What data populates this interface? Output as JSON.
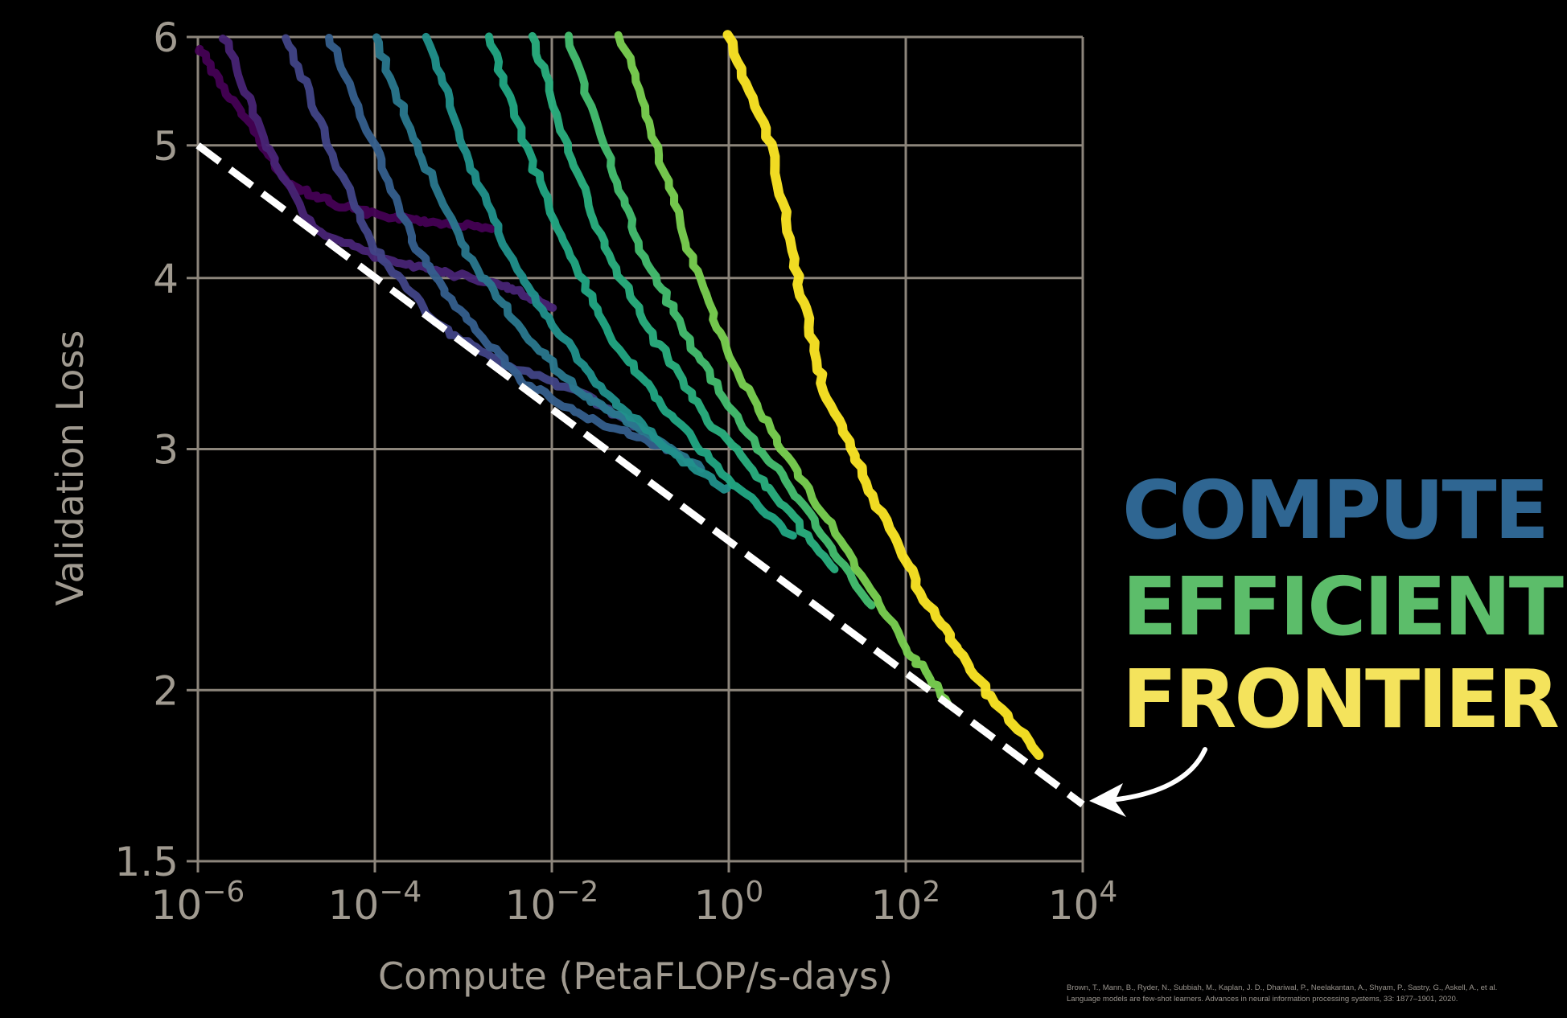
{
  "chart_data": {
    "type": "line",
    "title": "",
    "xlabel": "Compute (PetaFLOP/s-days)",
    "ylabel": "Validation Loss",
    "xscale": "log",
    "yscale": "log",
    "xlim": [
      1e-06,
      10000
    ],
    "ylim": [
      1.5,
      6
    ],
    "grid": true,
    "x_ticks": [
      {
        "value": 1e-06,
        "base": "10",
        "exp": "−6"
      },
      {
        "value": 0.0001,
        "base": "10",
        "exp": "−4"
      },
      {
        "value": 0.01,
        "base": "10",
        "exp": "−2"
      },
      {
        "value": 1,
        "base": "10",
        "exp": "0"
      },
      {
        "value": 100,
        "base": "10",
        "exp": "2"
      },
      {
        "value": 10000,
        "base": "10",
        "exp": "4"
      }
    ],
    "y_ticks": [
      {
        "value": 1.5,
        "label": "1.5"
      },
      {
        "value": 2,
        "label": "2"
      },
      {
        "value": 3,
        "label": "3"
      },
      {
        "value": 4,
        "label": "4"
      },
      {
        "value": 5,
        "label": "5"
      },
      {
        "value": 6,
        "label": "6"
      }
    ],
    "frontier": {
      "style": "dashed",
      "color": "#ffffff",
      "points": [
        [
          1e-06,
          5.0
        ],
        [
          10000,
          1.65
        ]
      ]
    },
    "series": [
      {
        "color": "#440154",
        "points": [
          [
            1e-06,
            5.9
          ],
          [
            3e-06,
            5.3
          ],
          [
            1e-05,
            4.7
          ],
          [
            3e-05,
            4.55
          ],
          [
            0.0001,
            4.45
          ],
          [
            0.0004,
            4.4
          ],
          [
            0.002,
            4.35
          ]
        ]
      },
      {
        "color": "#482475",
        "points": [
          [
            2e-06,
            6.0
          ],
          [
            6e-06,
            5.0
          ],
          [
            2e-05,
            4.35
          ],
          [
            0.0001,
            4.15
          ],
          [
            0.0005,
            4.05
          ],
          [
            0.003,
            3.95
          ],
          [
            0.01,
            3.8
          ]
        ]
      },
      {
        "color": "#414487",
        "points": [
          [
            1e-05,
            6.0
          ],
          [
            3e-05,
            5.0
          ],
          [
            0.0001,
            4.2
          ],
          [
            0.0005,
            3.7
          ],
          [
            0.003,
            3.45
          ],
          [
            0.02,
            3.3
          ],
          [
            0.1,
            3.1
          ]
        ]
      },
      {
        "color": "#355f8d",
        "points": [
          [
            3e-05,
            6.0
          ],
          [
            0.0001,
            5.0
          ],
          [
            0.0003,
            4.2
          ],
          [
            0.001,
            3.75
          ],
          [
            0.005,
            3.35
          ],
          [
            0.03,
            3.15
          ],
          [
            0.2,
            3.0
          ]
        ]
      },
      {
        "color": "#2a788e",
        "points": [
          [
            0.0001,
            6.0
          ],
          [
            0.0003,
            5.0
          ],
          [
            0.001,
            4.2
          ],
          [
            0.004,
            3.7
          ],
          [
            0.02,
            3.3
          ],
          [
            0.1,
            3.1
          ],
          [
            0.5,
            2.9
          ]
        ]
      },
      {
        "color": "#21918c",
        "points": [
          [
            0.0004,
            6.0
          ],
          [
            0.001,
            5.0
          ],
          [
            0.003,
            4.2
          ],
          [
            0.01,
            3.7
          ],
          [
            0.04,
            3.3
          ],
          [
            0.2,
            3.0
          ],
          [
            1,
            2.8
          ]
        ]
      },
      {
        "color": "#22a884",
        "points": [
          [
            0.002,
            6.0
          ],
          [
            0.005,
            5.0
          ],
          [
            0.015,
            4.2
          ],
          [
            0.05,
            3.6
          ],
          [
            0.2,
            3.2
          ],
          [
            1,
            2.85
          ],
          [
            5,
            2.6
          ]
        ]
      },
      {
        "color": "#2ab07f",
        "points": [
          [
            0.006,
            6.0
          ],
          [
            0.015,
            5.0
          ],
          [
            0.04,
            4.2
          ],
          [
            0.15,
            3.6
          ],
          [
            0.6,
            3.15
          ],
          [
            3,
            2.8
          ],
          [
            15,
            2.45
          ]
        ]
      },
      {
        "color": "#44bf70",
        "points": [
          [
            0.015,
            6.0
          ],
          [
            0.04,
            5.0
          ],
          [
            0.1,
            4.2
          ],
          [
            0.35,
            3.6
          ],
          [
            1.5,
            3.1
          ],
          [
            8,
            2.7
          ],
          [
            40,
            2.3
          ]
        ]
      },
      {
        "color": "#7ad151",
        "points": [
          [
            0.06,
            6.0
          ],
          [
            0.15,
            5.0
          ],
          [
            0.35,
            4.2
          ],
          [
            1,
            3.5
          ],
          [
            4,
            3.0
          ],
          [
            20,
            2.55
          ],
          [
            100,
            2.15
          ],
          [
            300,
            1.96
          ]
        ]
      },
      {
        "color": "#fde725",
        "points": [
          [
            1,
            6.0
          ],
          [
            3,
            5.0
          ],
          [
            6,
            4.0
          ],
          [
            12,
            3.3
          ],
          [
            40,
            2.8
          ],
          [
            150,
            2.35
          ],
          [
            600,
            2.05
          ],
          [
            3000,
            1.8
          ]
        ]
      }
    ]
  },
  "callout": {
    "line1": "COMPUTE",
    "line2": "EFFICIENT",
    "line3": "FRONTIER",
    "color1": "#2f6692",
    "color2": "#5cbd6a",
    "color3": "#f4e35c"
  },
  "citation": {
    "line1": "Brown, T., Mann, B., Ryder, N., Subbiah, M., Kaplan, J. D., Dhariwal, P., Neelakantan, A., Shyam, P., Sastry, G., Askell, A., et al.",
    "line2": "Language models are few-shot learners. Advances in neural information processing systems, 33: 1877–1901, 2020."
  }
}
